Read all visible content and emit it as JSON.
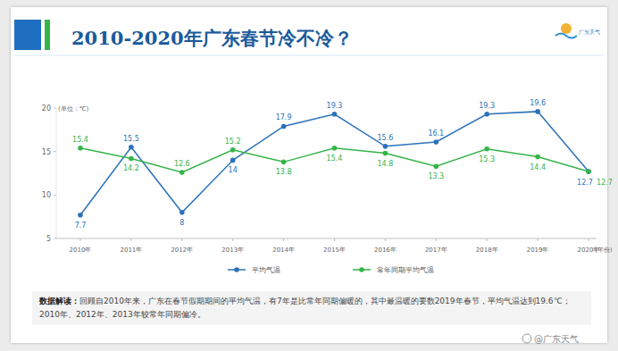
{
  "chart_data": {
    "type": "line",
    "title": "2010-2020年广东春节冷不冷？",
    "logo_text": "广东天气",
    "y_label": "(单位：℃)",
    "x_label": "(年份)",
    "categories": [
      "2010年",
      "2011年",
      "2012年",
      "2013年",
      "2014年",
      "2015年",
      "2016年",
      "2017年",
      "2018年",
      "2019年",
      "2020年"
    ],
    "series": [
      {
        "name": "平均气温",
        "color": "#2b72b8",
        "marker": "circle",
        "values": [
          7.7,
          15.5,
          8.0,
          14.0,
          17.9,
          19.3,
          15.6,
          16.1,
          19.3,
          19.6,
          12.7
        ]
      },
      {
        "name": "常年同期平均气温",
        "color": "#35b44a",
        "marker": "circle",
        "values": [
          15.4,
          14.2,
          12.6,
          15.2,
          13.8,
          15.4,
          14.8,
          13.3,
          15.3,
          14.4,
          12.7
        ]
      }
    ],
    "ylim": [
      5,
      20
    ],
    "yticks": [
      5,
      10,
      15,
      20
    ],
    "grid": false,
    "data_labels": true,
    "legend": "bottom",
    "note_title": "数据解读：",
    "note_text": "回顾自2010年来，广东在春节假期期间的平均气温，有7年是比常年同期偏暖的，其中最温暖的要数2019年春节，平均气温达到19.6℃；2010年、2012年、2013年较常年同期偏冷。",
    "watermark": "@广东天气"
  }
}
